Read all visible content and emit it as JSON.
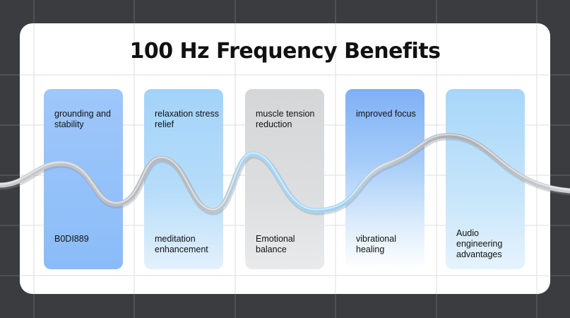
{
  "title": "100 Hz Frequency Benefits",
  "panels": [
    {
      "top": "grounding and stability",
      "bottom": "B0DI889"
    },
    {
      "top": "relaxation stress relief",
      "bottom": "meditation enhancement"
    },
    {
      "top": "muscle tension reduction",
      "bottom": "Emotional balance"
    },
    {
      "top": "improved focus",
      "bottom": "vibrational healing"
    },
    {
      "top": "",
      "bottom": "Audio engineering advantages"
    }
  ],
  "colors": {
    "background": "#3a3c40",
    "card": "#ffffff",
    "wave_silver": "#b8bcc2",
    "wave_blue": "#9fd2f5"
  }
}
